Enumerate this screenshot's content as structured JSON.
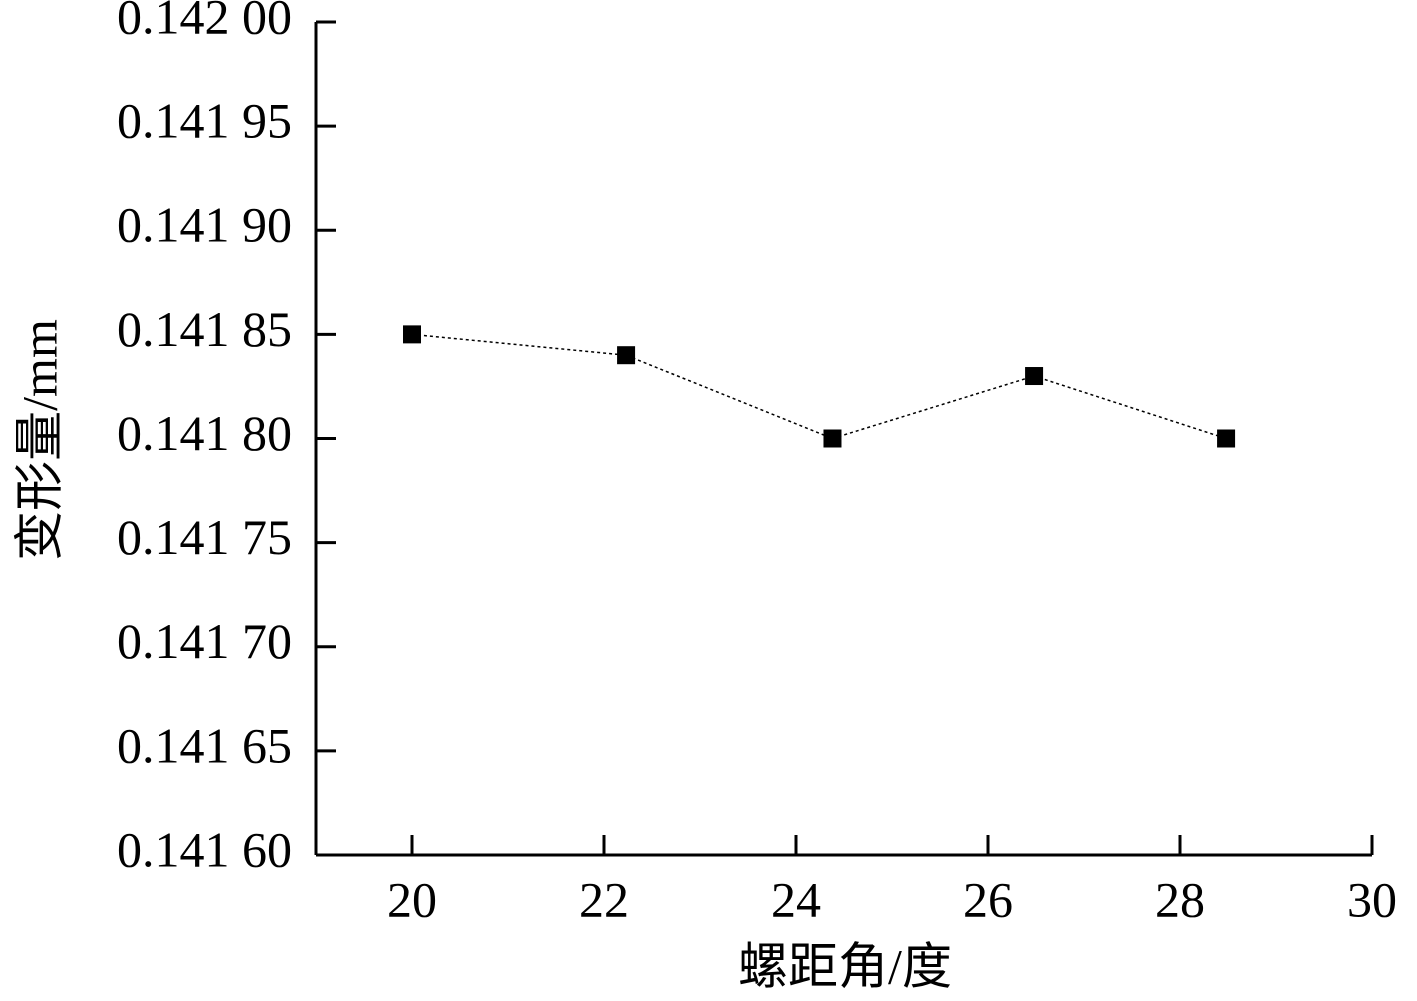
{
  "chart_data": {
    "type": "line",
    "x_label": "螺距角/度",
    "y_label": "变形量/mm",
    "x": [
      20,
      22.23,
      24.38,
      26.48,
      28.48
    ],
    "series": [
      {
        "color": "#000000",
        "values": [
          0.14185,
          0.14184,
          0.1418,
          0.14183,
          0.1418
        ]
      }
    ],
    "xlim": [
      19,
      30
    ],
    "xticks": [
      20,
      22,
      24,
      26,
      28,
      30
    ],
    "ylim": [
      0.1416,
      0.142
    ],
    "yticks": [
      {
        "value": 0.1416,
        "label": "0.141 60"
      },
      {
        "value": 0.14165,
        "label": "0.141 65"
      },
      {
        "value": 0.1417,
        "label": "0.141 70"
      },
      {
        "value": 0.14175,
        "label": "0.141 75"
      },
      {
        "value": 0.1418,
        "label": "0.141 80"
      },
      {
        "value": 0.14185,
        "label": "0.141 85"
      },
      {
        "value": 0.1419,
        "label": "0.141 90"
      },
      {
        "value": 0.14195,
        "label": "0.141 95"
      },
      {
        "value": 0.142,
        "label": "0.142 00"
      }
    ],
    "marker": "square",
    "grid": false
  }
}
